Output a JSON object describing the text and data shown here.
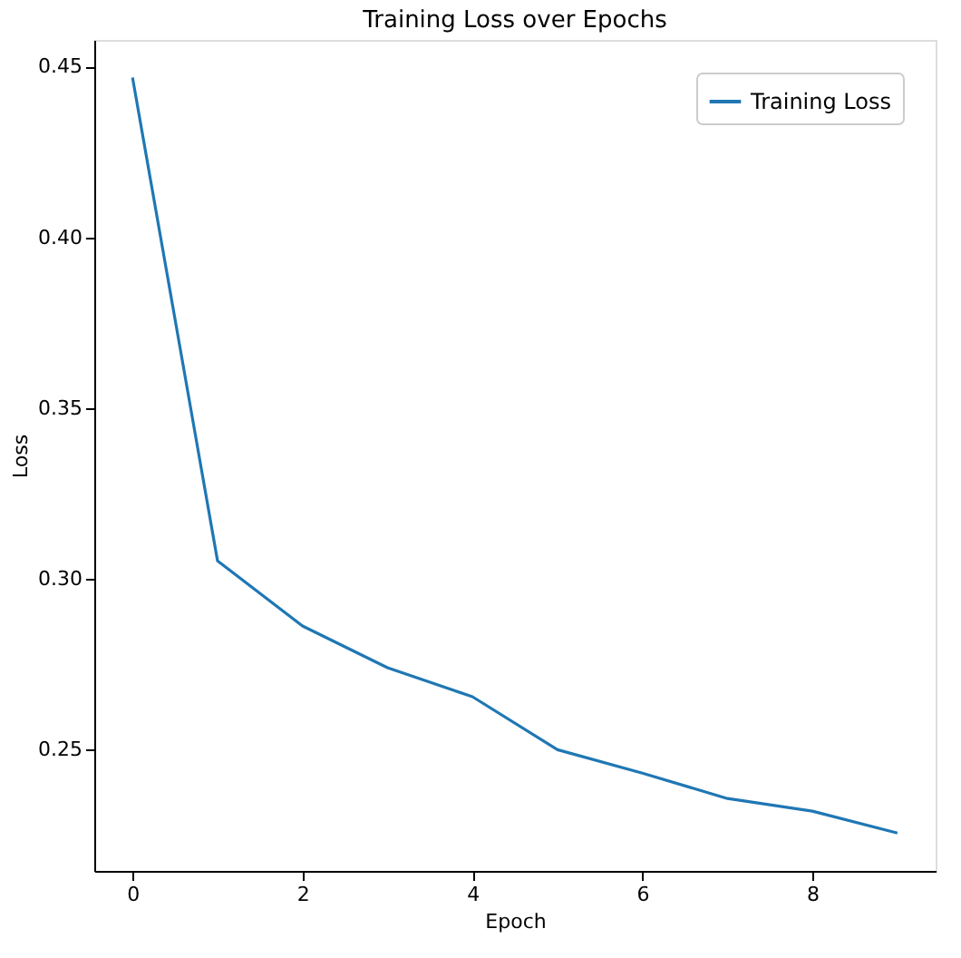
{
  "chart_data": {
    "type": "line",
    "title": "Training Loss over Epochs",
    "xlabel": "Epoch",
    "ylabel": "Loss",
    "x": [
      0,
      1,
      2,
      3,
      4,
      5,
      6,
      7,
      8,
      9
    ],
    "series": [
      {
        "name": "Training Loss",
        "color": "#1f77b4",
        "values": [
          0.4468,
          0.3053,
          0.2862,
          0.274,
          0.2655,
          0.25,
          0.2431,
          0.2357,
          0.232,
          0.2256
        ]
      }
    ],
    "xlim": [
      -0.45,
      9.45
    ],
    "xticks": [
      0,
      2,
      4,
      6,
      8
    ],
    "ylim": [
      0.2145,
      0.4578
    ],
    "yticks": [
      0.25,
      {
        "value": 0.3,
        "label": "0.30"
      },
      0.35,
      {
        "value": 0.4,
        "label": "0.40"
      },
      0.45
    ],
    "legend": "top right",
    "grid": false,
    "marker": "none",
    "line_style": "solid"
  }
}
